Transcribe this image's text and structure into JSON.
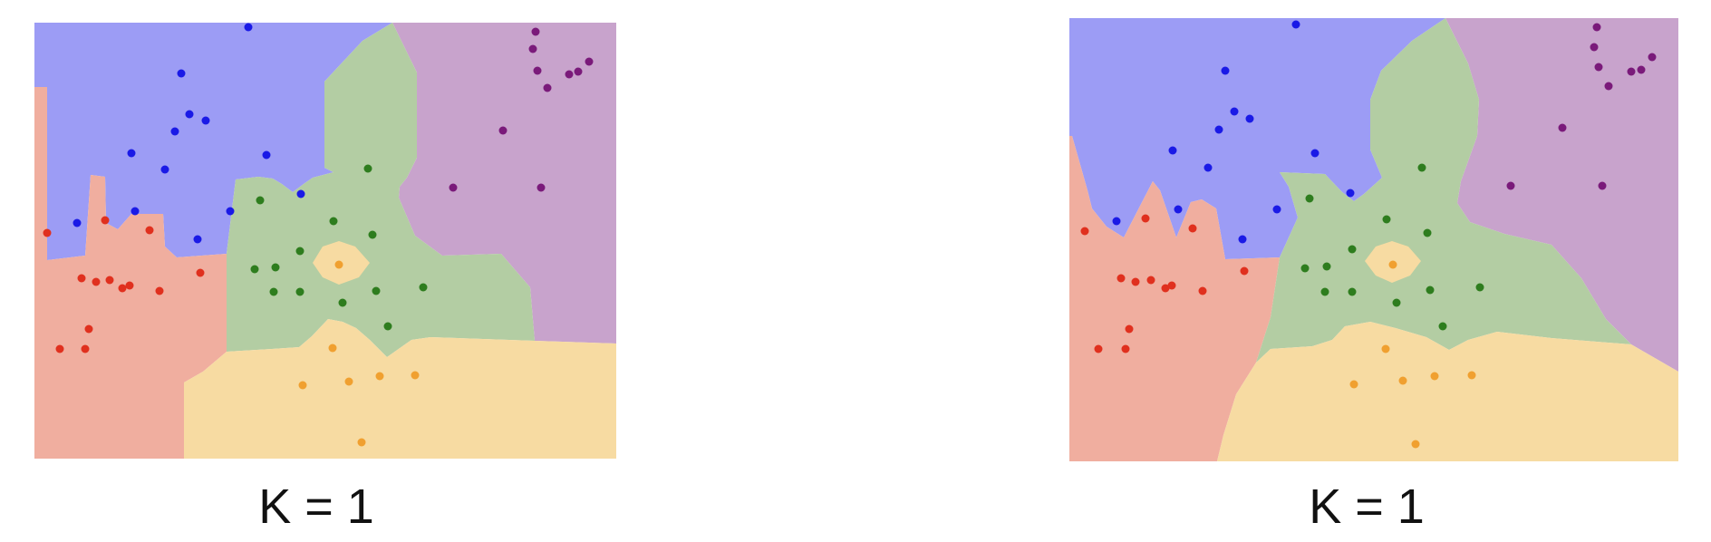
{
  "colors": {
    "blue_region": "#9c9cf5",
    "red_region": "#f0ae9f",
    "green_region": "#b3cda3",
    "yellow_region": "#f7dba2",
    "purple_region": "#c8a3cc",
    "blue_point": "#1a1ae6",
    "red_point": "#e0301e",
    "green_point": "#2e7d1e",
    "yellow_point": "#f0a030",
    "purple_point": "#7a1a7a"
  },
  "panels": [
    {
      "caption": "K = 1",
      "points": {
        "blue": [
          [
            274,
            30
          ],
          [
            200,
            81
          ],
          [
            209,
            126
          ],
          [
            227,
            133
          ],
          [
            193,
            145
          ],
          [
            145,
            169
          ],
          [
            182,
            187
          ],
          [
            294,
            171
          ],
          [
            332,
            214
          ],
          [
            149,
            233
          ],
          [
            254,
            233
          ],
          [
            85,
            246
          ],
          [
            218,
            264
          ]
        ],
        "red": [
          [
            52,
            257
          ],
          [
            116,
            243
          ],
          [
            165,
            254
          ],
          [
            221,
            301
          ],
          [
            90,
            307
          ],
          [
            106,
            311
          ],
          [
            121,
            309
          ],
          [
            135,
            318
          ],
          [
            143,
            315
          ],
          [
            176,
            321
          ],
          [
            98,
            363
          ],
          [
            66,
            385
          ],
          [
            94,
            385
          ]
        ],
        "green": [
          [
            406,
            186
          ],
          [
            287,
            221
          ],
          [
            368,
            244
          ],
          [
            411,
            259
          ],
          [
            331,
            277
          ],
          [
            281,
            297
          ],
          [
            304,
            295
          ],
          [
            302,
            322
          ],
          [
            331,
            322
          ],
          [
            378,
            334
          ],
          [
            415,
            321
          ],
          [
            467,
            317
          ],
          [
            428,
            360
          ]
        ],
        "yellow": [
          [
            374,
            292
          ],
          [
            367,
            384
          ],
          [
            334,
            425
          ],
          [
            385,
            421
          ],
          [
            419,
            415
          ],
          [
            458,
            414
          ],
          [
            399,
            488
          ]
        ],
        "purple": [
          [
            591,
            35
          ],
          [
            588,
            54
          ],
          [
            593,
            78
          ],
          [
            604,
            97
          ],
          [
            628,
            82
          ],
          [
            638,
            79
          ],
          [
            650,
            68
          ],
          [
            555,
            144
          ],
          [
            500,
            207
          ],
          [
            597,
            207
          ]
        ]
      }
    },
    {
      "caption": "K = 1",
      "points": {
        "blue": [
          [
            1430,
            27
          ],
          [
            1352,
            78
          ],
          [
            1362,
            123
          ],
          [
            1379,
            131
          ],
          [
            1345,
            143
          ],
          [
            1294,
            166
          ],
          [
            1333,
            185
          ],
          [
            1451,
            169
          ],
          [
            1490,
            213
          ],
          [
            1300,
            231
          ],
          [
            1409,
            231
          ],
          [
            1232,
            244
          ],
          [
            1371,
            264
          ]
        ],
        "red": [
          [
            1197,
            255
          ],
          [
            1264,
            241
          ],
          [
            1316,
            252
          ],
          [
            1373,
            299
          ],
          [
            1237,
            307
          ],
          [
            1253,
            311
          ],
          [
            1270,
            309
          ],
          [
            1286,
            318
          ],
          [
            1293,
            315
          ],
          [
            1327,
            321
          ],
          [
            1246,
            363
          ],
          [
            1212,
            385
          ],
          [
            1242,
            385
          ]
        ],
        "green": [
          [
            1569,
            185
          ],
          [
            1445,
            219
          ],
          [
            1530,
            242
          ],
          [
            1575,
            257
          ],
          [
            1492,
            275
          ],
          [
            1440,
            296
          ],
          [
            1464,
            294
          ],
          [
            1462,
            322
          ],
          [
            1492,
            322
          ],
          [
            1541,
            334
          ],
          [
            1578,
            320
          ],
          [
            1633,
            317
          ],
          [
            1592,
            360
          ]
        ],
        "yellow": [
          [
            1537,
            292
          ],
          [
            1529,
            385
          ],
          [
            1494,
            424
          ],
          [
            1548,
            420
          ],
          [
            1583,
            415
          ],
          [
            1624,
            414
          ],
          [
            1562,
            490
          ]
        ],
        "purple": [
          [
            1762,
            30
          ],
          [
            1759,
            52
          ],
          [
            1764,
            74
          ],
          [
            1775,
            95
          ],
          [
            1800,
            79
          ],
          [
            1811,
            77
          ],
          [
            1823,
            63
          ],
          [
            1724,
            141
          ],
          [
            1667,
            205
          ],
          [
            1768,
            205
          ]
        ]
      }
    }
  ]
}
